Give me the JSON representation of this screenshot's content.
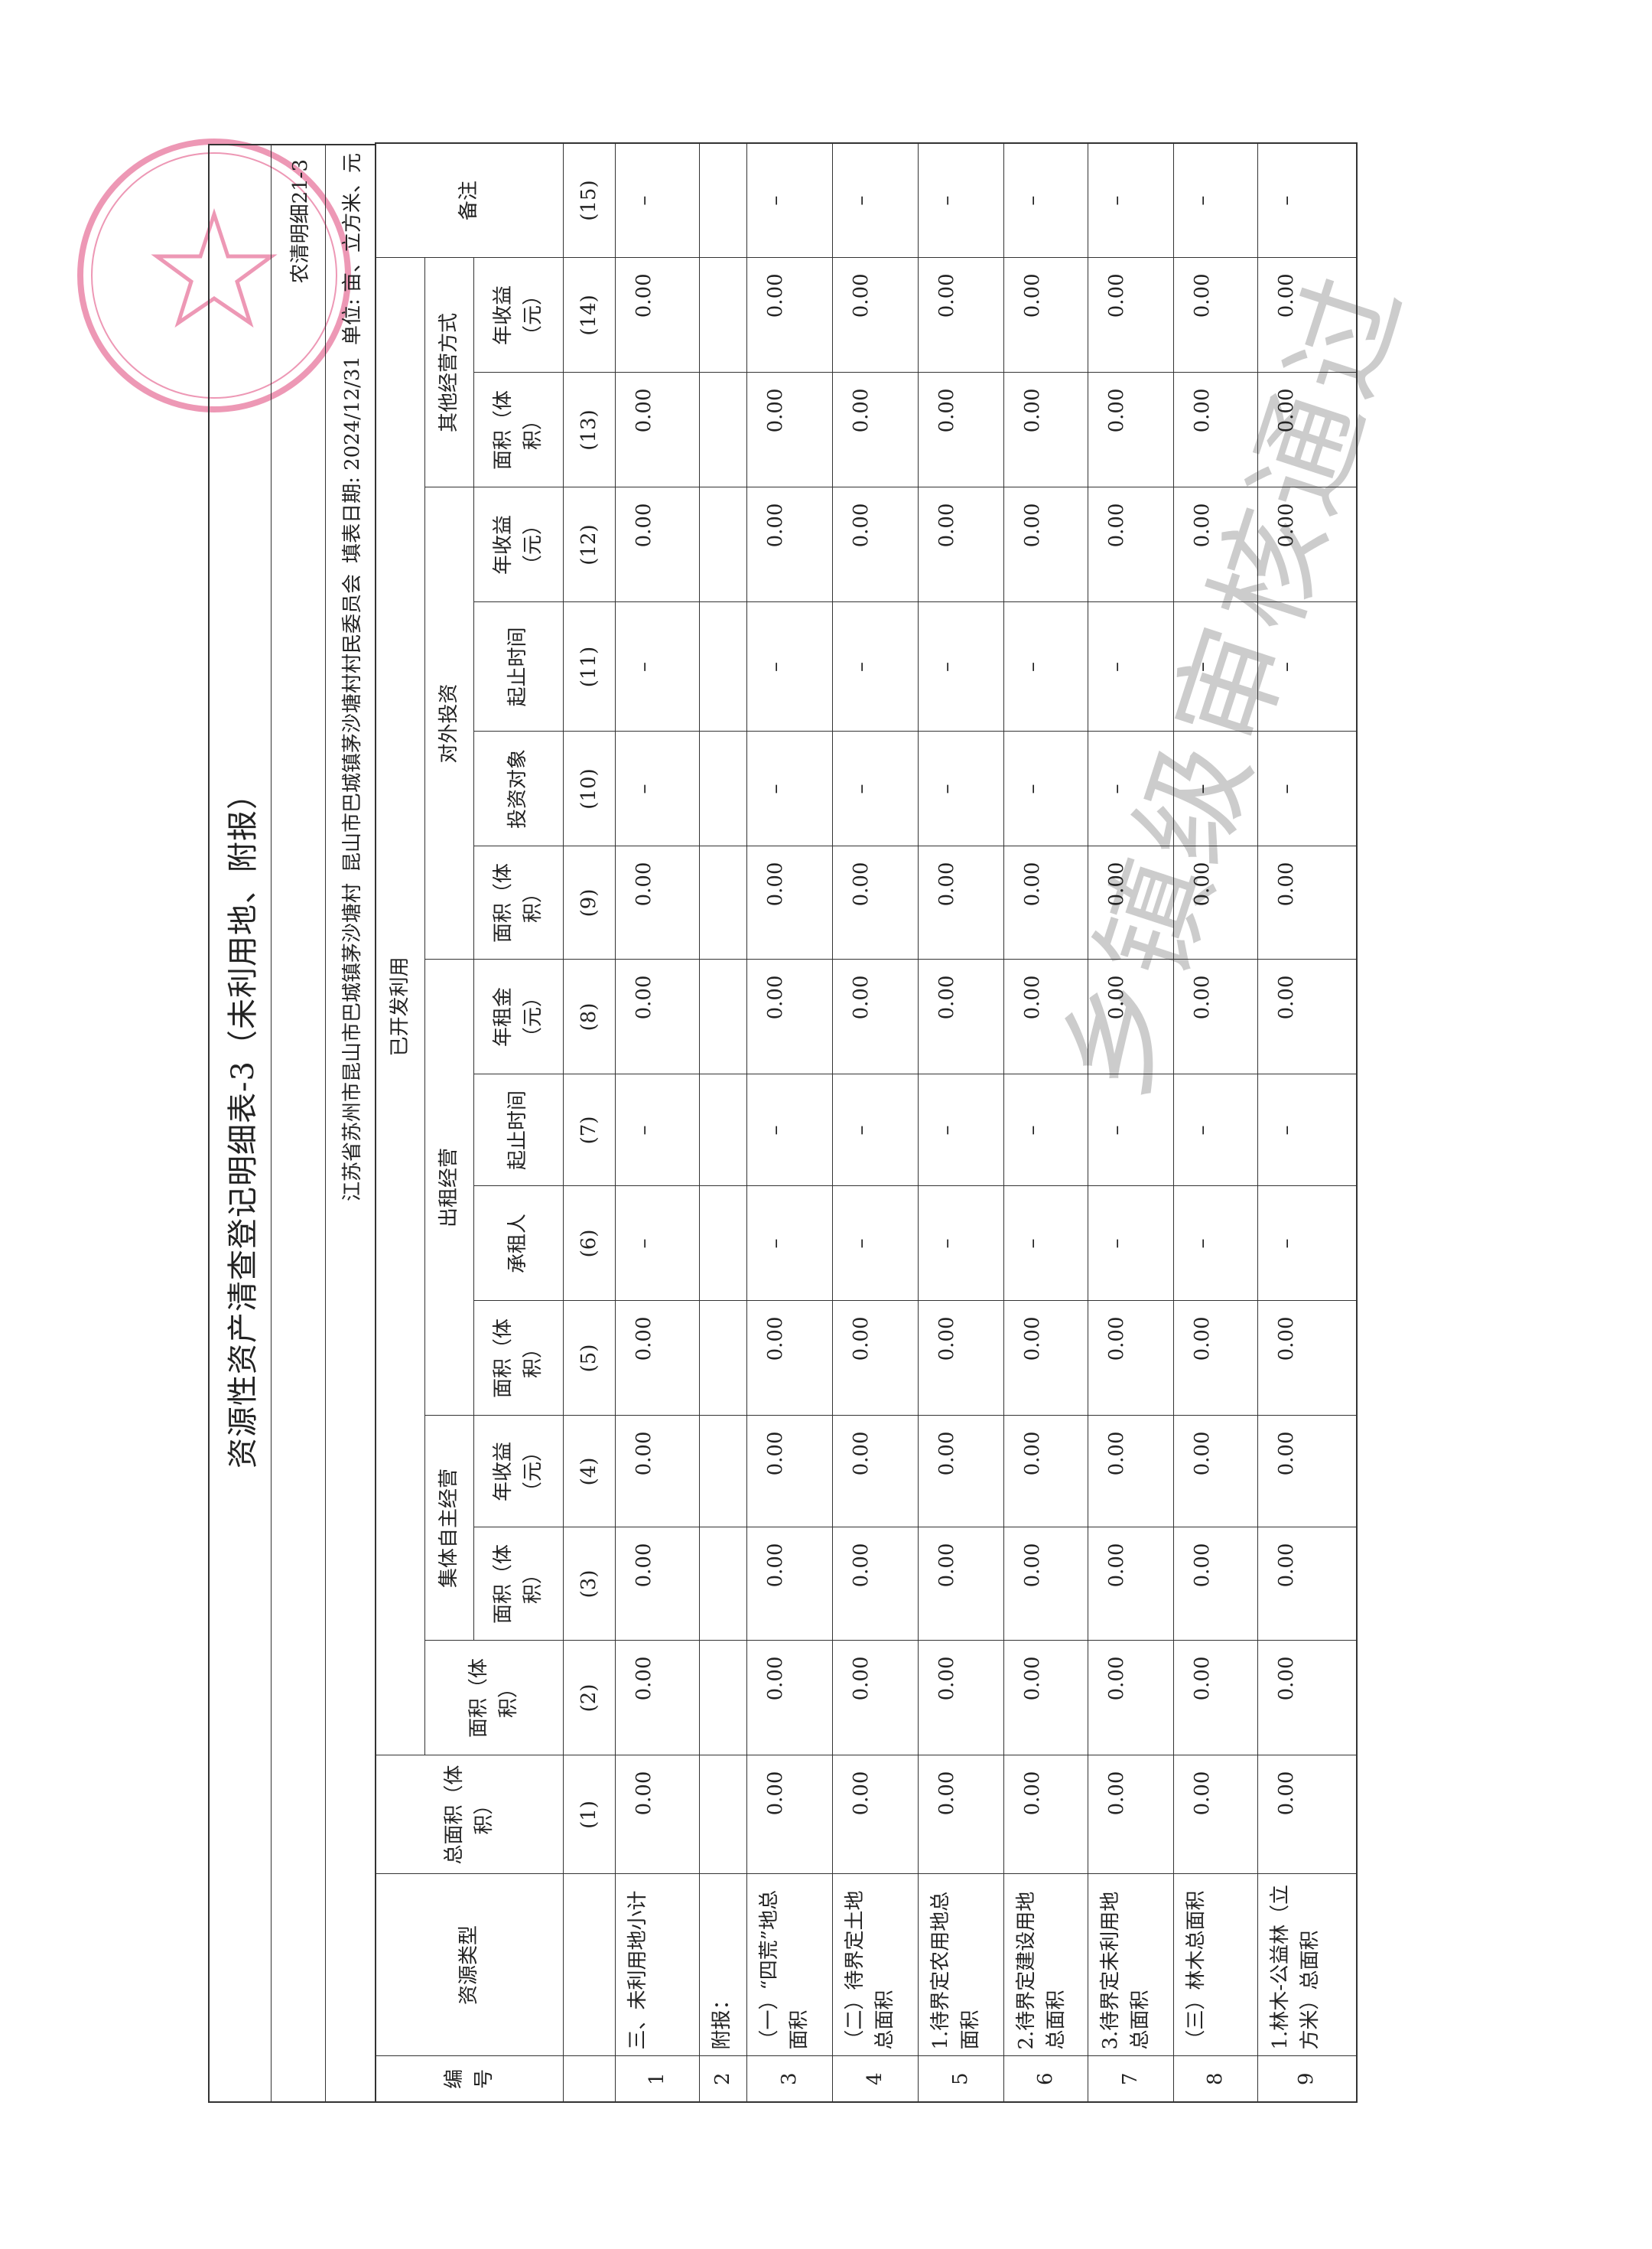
{
  "header": {
    "title": "资源性资产清查登记明细表-3（未利用地、附报）",
    "form_code": "农清明细21-3",
    "location": "江苏省苏州市昆山市巴城镇茅沙塘村",
    "unit_name": "昆山市巴城镇茅沙塘村村民委员会",
    "fill_date_label": "填表日期:",
    "fill_date": "2024/12/31",
    "unit_label": "单位:",
    "unit": "亩、立方米、元"
  },
  "columns": {
    "no": "编号",
    "type": "资源类型",
    "total_area": "总面积（体积）",
    "developed": "已开发利用",
    "remark": "备注",
    "area": "面积（体积）",
    "groups": [
      "集体自主经营",
      "出租经营",
      "对外投资",
      "其他经营方式"
    ],
    "sub": [
      "面积（体积）",
      "年收益（元）",
      "面积（体积）",
      "承租人",
      "起止时间",
      "年租金（元）",
      "面积（体积）",
      "投资对象",
      "起止时间",
      "年收益（元）",
      "面积（体积）",
      "年收益（元）"
    ],
    "indices": [
      "(1)",
      "(2)",
      "(3)",
      "(4)",
      "(5)",
      "(6)",
      "(7)",
      "(8)",
      "(9)",
      "(10)",
      "(11)",
      "(12)",
      "(13)",
      "(14)",
      "(15)"
    ]
  },
  "rows": [
    {
      "no": "1",
      "type": "三、未利用地小计",
      "values": [
        "0.00",
        "0.00",
        "0.00",
        "0.00",
        "0.00",
        "–",
        "–",
        "0.00",
        "0.00",
        "–",
        "–",
        "0.00",
        "0.00",
        "0.00",
        "–"
      ]
    },
    {
      "no": "2",
      "type": "附报：",
      "values": [
        "",
        "",
        "",
        "",
        "",
        "",
        "",
        "",
        "",
        "",
        "",
        "",
        "",
        "",
        ""
      ]
    },
    {
      "no": "3",
      "type": "（一）“四荒”地总面积",
      "values": [
        "0.00",
        "0.00",
        "0.00",
        "0.00",
        "0.00",
        "–",
        "–",
        "0.00",
        "0.00",
        "–",
        "–",
        "0.00",
        "0.00",
        "0.00",
        "–"
      ]
    },
    {
      "no": "4",
      "type": "（二）待界定土地总面积",
      "values": [
        "0.00",
        "0.00",
        "0.00",
        "0.00",
        "0.00",
        "–",
        "–",
        "0.00",
        "0.00",
        "–",
        "–",
        "0.00",
        "0.00",
        "0.00",
        "–"
      ]
    },
    {
      "no": "5",
      "type": "1.待界定农用地总面积",
      "values": [
        "0.00",
        "0.00",
        "0.00",
        "0.00",
        "0.00",
        "–",
        "–",
        "0.00",
        "0.00",
        "–",
        "–",
        "0.00",
        "0.00",
        "0.00",
        "–"
      ]
    },
    {
      "no": "6",
      "type": "2.待界定建设用地总面积",
      "values": [
        "0.00",
        "0.00",
        "0.00",
        "0.00",
        "0.00",
        "–",
        "–",
        "0.00",
        "0.00",
        "–",
        "–",
        "0.00",
        "0.00",
        "0.00",
        "–"
      ]
    },
    {
      "no": "7",
      "type": "3.待界定未利用地总面积",
      "values": [
        "0.00",
        "0.00",
        "0.00",
        "0.00",
        "0.00",
        "–",
        "–",
        "0.00",
        "0.00",
        "–",
        "–",
        "0.00",
        "0.00",
        "0.00",
        "–"
      ]
    },
    {
      "no": "8",
      "type": "（三）林木总面积",
      "values": [
        "0.00",
        "0.00",
        "0.00",
        "0.00",
        "0.00",
        "–",
        "–",
        "0.00",
        "0.00",
        "–",
        "–",
        "0.00",
        "0.00",
        "0.00",
        "–"
      ]
    },
    {
      "no": "9",
      "type": "1.林木-公益林（立方米）总面积",
      "values": [
        "0.00",
        "0.00",
        "0.00",
        "0.00",
        "0.00",
        "–",
        "–",
        "0.00",
        "0.00",
        "–",
        "–",
        "0.00",
        "0.00",
        "0.00",
        "–"
      ]
    }
  ],
  "watermark": "乡镇级审核通过",
  "colors": {
    "stamp": "#e0457a",
    "watermark": "#787878",
    "ink": "#222222"
  }
}
